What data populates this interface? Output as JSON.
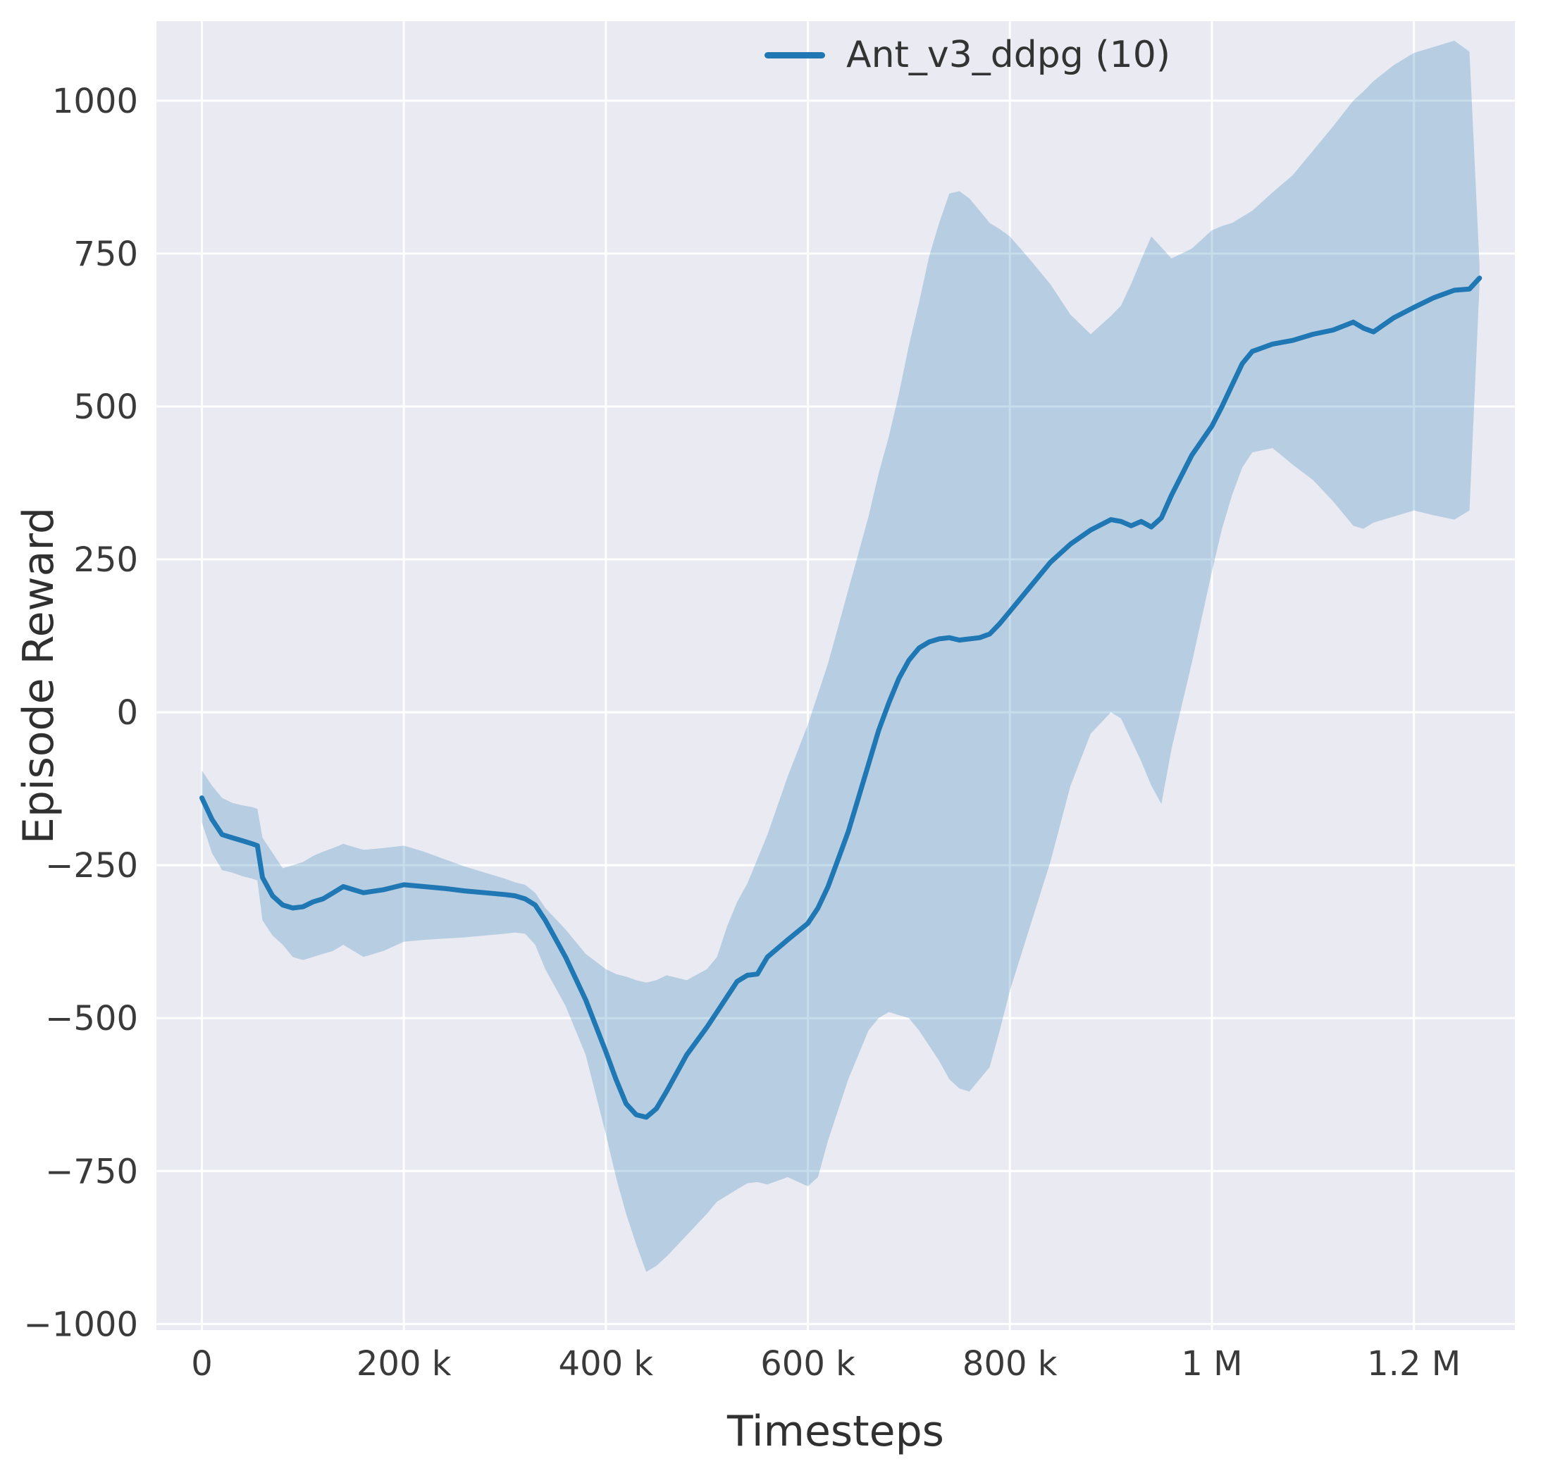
{
  "figure": {
    "background": "#ffffff",
    "plot_background": "#eaeaf2",
    "grid_color": "#ffffff",
    "tick_color": "#3a3a3a",
    "text_color": "#303030"
  },
  "chart_data": {
    "type": "line",
    "title": "",
    "xlabel": "Timesteps",
    "ylabel": "Episode Reward",
    "grid": true,
    "legend_position": "upper right",
    "legend": [
      {
        "label": "Ant_v3_ddpg (10)",
        "color": "#1f77b4"
      }
    ],
    "xlim": [
      -45000,
      1300000
    ],
    "ylim": [
      -1010,
      1130
    ],
    "xticks": [
      {
        "value": 0,
        "label": "0"
      },
      {
        "value": 200000,
        "label": "200 k"
      },
      {
        "value": 400000,
        "label": "400 k"
      },
      {
        "value": 600000,
        "label": "600 k"
      },
      {
        "value": 800000,
        "label": "800 k"
      },
      {
        "value": 1000000,
        "label": "1 M"
      },
      {
        "value": 1200000,
        "label": "1.2 M"
      }
    ],
    "yticks": [
      {
        "value": -1000,
        "label": "−1000"
      },
      {
        "value": -750,
        "label": "−750"
      },
      {
        "value": -500,
        "label": "−500"
      },
      {
        "value": -250,
        "label": "−250"
      },
      {
        "value": 0,
        "label": "0"
      },
      {
        "value": 250,
        "label": "250"
      },
      {
        "value": 500,
        "label": "500"
      },
      {
        "value": 750,
        "label": "750"
      },
      {
        "value": 1000,
        "label": "1000"
      }
    ],
    "series": [
      {
        "name": "Ant_v3_ddpg (10)",
        "color": "#1f77b4",
        "line_width": 7,
        "band_opacity": 0.25,
        "x": [
          0,
          10000,
          20000,
          30000,
          40000,
          50000,
          55000,
          60000,
          70000,
          80000,
          90000,
          100000,
          110000,
          120000,
          130000,
          140000,
          150000,
          160000,
          180000,
          200000,
          220000,
          240000,
          260000,
          280000,
          300000,
          310000,
          320000,
          330000,
          340000,
          360000,
          380000,
          400000,
          410000,
          420000,
          430000,
          440000,
          450000,
          460000,
          480000,
          500000,
          510000,
          520000,
          530000,
          540000,
          550000,
          560000,
          580000,
          600000,
          610000,
          620000,
          630000,
          640000,
          650000,
          660000,
          670000,
          680000,
          690000,
          700000,
          710000,
          720000,
          730000,
          740000,
          750000,
          760000,
          770000,
          780000,
          790000,
          800000,
          820000,
          840000,
          860000,
          880000,
          900000,
          910000,
          920000,
          930000,
          940000,
          950000,
          960000,
          980000,
          1000000,
          1010000,
          1020000,
          1030000,
          1040000,
          1060000,
          1080000,
          1100000,
          1120000,
          1140000,
          1150000,
          1160000,
          1180000,
          1200000,
          1220000,
          1240000,
          1255000,
          1265000
        ],
        "mean": [
          -140,
          -175,
          -200,
          -205,
          -210,
          -215,
          -218,
          -270,
          -300,
          -315,
          -320,
          -318,
          -310,
          -305,
          -295,
          -285,
          -290,
          -295,
          -290,
          -282,
          -285,
          -288,
          -292,
          -295,
          -298,
          -300,
          -305,
          -315,
          -340,
          -400,
          -470,
          -555,
          -600,
          -640,
          -658,
          -662,
          -648,
          -620,
          -560,
          -515,
          -490,
          -465,
          -440,
          -430,
          -428,
          -400,
          -372,
          -345,
          -320,
          -285,
          -240,
          -195,
          -140,
          -85,
          -30,
          15,
          55,
          85,
          105,
          115,
          120,
          122,
          118,
          120,
          122,
          128,
          145,
          165,
          205,
          245,
          275,
          298,
          315,
          312,
          305,
          312,
          303,
          318,
          355,
          420,
          468,
          500,
          535,
          570,
          590,
          602,
          608,
          618,
          625,
          638,
          628,
          622,
          645,
          662,
          678,
          690,
          692,
          710
        ],
        "lower": [
          -180,
          -230,
          -258,
          -262,
          -268,
          -272,
          -275,
          -340,
          -365,
          -380,
          -400,
          -405,
          -400,
          -395,
          -390,
          -380,
          -390,
          -400,
          -390,
          -375,
          -372,
          -370,
          -368,
          -365,
          -362,
          -360,
          -362,
          -380,
          -420,
          -480,
          -560,
          -690,
          -760,
          -820,
          -870,
          -915,
          -905,
          -890,
          -855,
          -820,
          -800,
          -790,
          -780,
          -770,
          -768,
          -772,
          -760,
          -775,
          -760,
          -700,
          -650,
          -600,
          -560,
          -520,
          -500,
          -490,
          -495,
          -500,
          -520,
          -545,
          -570,
          -600,
          -615,
          -620,
          -600,
          -580,
          -520,
          -455,
          -350,
          -245,
          -120,
          -35,
          0,
          -10,
          -45,
          -80,
          -120,
          -150,
          -60,
          80,
          230,
          300,
          355,
          400,
          425,
          432,
          405,
          380,
          345,
          305,
          300,
          310,
          320,
          330,
          322,
          315,
          330,
          700
        ],
        "upper": [
          -95,
          -120,
          -140,
          -148,
          -152,
          -155,
          -158,
          -205,
          -230,
          -255,
          -250,
          -245,
          -235,
          -228,
          -222,
          -215,
          -220,
          -225,
          -222,
          -218,
          -228,
          -240,
          -252,
          -262,
          -272,
          -278,
          -282,
          -295,
          -320,
          -355,
          -395,
          -420,
          -428,
          -432,
          -438,
          -442,
          -438,
          -430,
          -438,
          -420,
          -400,
          -350,
          -310,
          -280,
          -240,
          -200,
          -105,
          -20,
          30,
          80,
          140,
          200,
          260,
          320,
          390,
          450,
          520,
          600,
          670,
          745,
          800,
          848,
          852,
          840,
          820,
          800,
          790,
          778,
          740,
          700,
          650,
          618,
          648,
          665,
          700,
          740,
          778,
          760,
          742,
          758,
          788,
          795,
          800,
          810,
          820,
          850,
          878,
          918,
          958,
          1000,
          1015,
          1032,
          1058,
          1078,
          1088,
          1098,
          1080,
          730
        ]
      }
    ]
  }
}
